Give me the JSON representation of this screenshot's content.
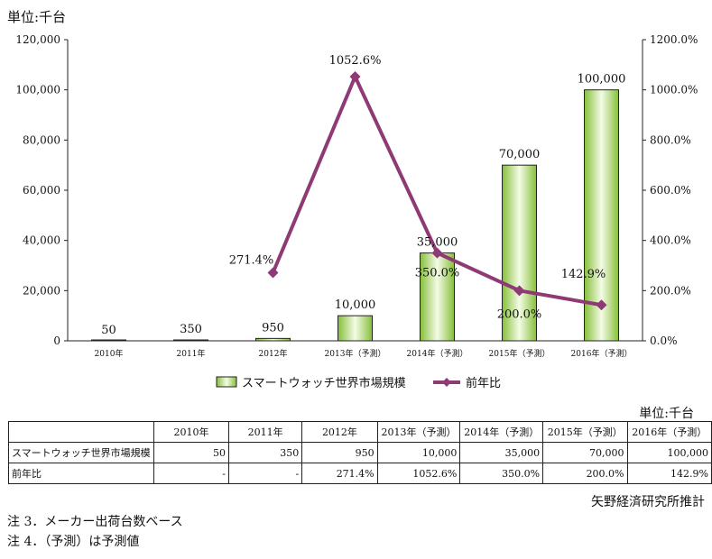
{
  "unit_label": "単位:千台",
  "chart_data": {
    "type": "bar",
    "categories": [
      "2010年",
      "2011年",
      "2012年",
      "2013年（予測）",
      "2014年（予測）",
      "2015年（予測）",
      "2016年（予測）"
    ],
    "series": [
      {
        "name": "スマートウォッチ世界市場規模",
        "type": "bar",
        "axis": "left",
        "values": [
          50,
          350,
          950,
          10000,
          35000,
          70000,
          100000
        ],
        "labels": [
          "50",
          "350",
          "950",
          "10,000",
          "35,000",
          "70,000",
          "100,000"
        ]
      },
      {
        "name": "前年比",
        "type": "line",
        "axis": "right",
        "values": [
          null,
          null,
          271.4,
          1052.6,
          350.0,
          200.0,
          142.9
        ],
        "labels": [
          "",
          "",
          "271.4%",
          "1052.6%",
          "350.0%",
          "200.0%",
          "142.9%"
        ]
      }
    ],
    "ylim_left": [
      0,
      120000
    ],
    "ylim_right": [
      0,
      1200
    ],
    "yticks_left": [
      "0",
      "20,000",
      "40,000",
      "60,000",
      "80,000",
      "100,000",
      "120,000"
    ],
    "yticks_right": [
      "0.0%",
      "200.0%",
      "400.0%",
      "600.0%",
      "800.0%",
      "1000.0%",
      "1200.0%"
    ],
    "legend_position": "bottom",
    "colors": {
      "bar_edge": "#222222",
      "bar_light": "#f4fbe6",
      "bar_dark": "#86bf3a",
      "line": "#8e3a74"
    }
  },
  "table": {
    "unit_label": "単位:千台",
    "headers": [
      "",
      "2010年",
      "2011年",
      "2012年",
      "2013年（予測）",
      "2014年（予測）",
      "2015年（予測）",
      "2016年（予測）"
    ],
    "rows": [
      {
        "label": "スマートウォッチ世界市場規模",
        "cells": [
          "50",
          "350",
          "950",
          "10,000",
          "35,000",
          "70,000",
          "100,000"
        ]
      },
      {
        "label": "前年比",
        "cells": [
          "-",
          "-",
          "271.4%",
          "1052.6%",
          "350.0%",
          "200.0%",
          "142.9%"
        ]
      }
    ]
  },
  "source": "矢野経済研究所推計",
  "notes": [
    "注 3．メーカー出荷台数ベース",
    "注 4．（予測）は予測値"
  ]
}
